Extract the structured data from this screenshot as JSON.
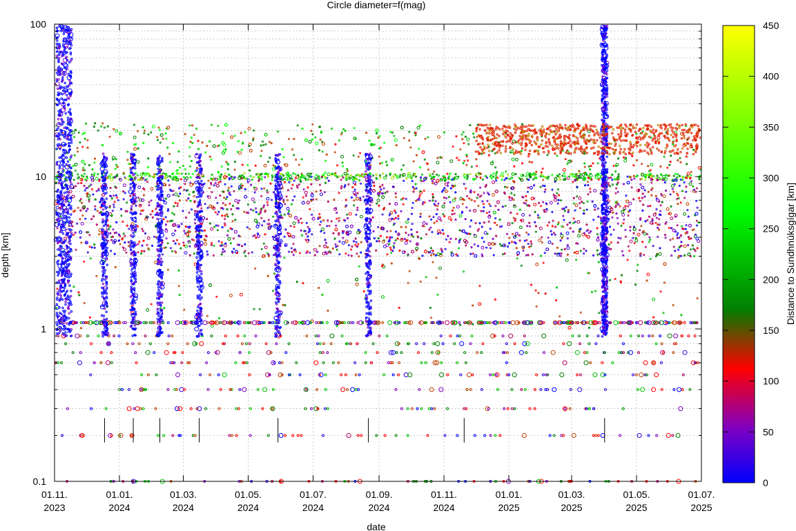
{
  "chart_data": {
    "type": "scatter",
    "title": "Circle diameter=f(mag)",
    "xlabel": "date",
    "ylabel": "depth [km]",
    "colorbar_label": "Distance to Sundhnúksgígar [km]",
    "y_scale": "log",
    "ylim": [
      0.1,
      100
    ],
    "y_ticks": [
      {
        "value": 0.1,
        "label": "0.1"
      },
      {
        "value": 1,
        "label": "1"
      },
      {
        "value": 10,
        "label": "10"
      },
      {
        "value": 100,
        "label": "100"
      }
    ],
    "xlim": [
      "2023-11-01",
      "2025-07-01"
    ],
    "x_ticks": [
      {
        "date": "2023-11-01",
        "label1": "01.11.",
        "label2": "2023"
      },
      {
        "date": "2024-01-01",
        "label1": "01.01.",
        "label2": "2024"
      },
      {
        "date": "2024-03-01",
        "label1": "01.03.",
        "label2": "2024"
      },
      {
        "date": "2024-05-01",
        "label1": "01.05.",
        "label2": "2024"
      },
      {
        "date": "2024-07-01",
        "label1": "01.07.",
        "label2": "2024"
      },
      {
        "date": "2024-09-01",
        "label1": "01.09.",
        "label2": "2024"
      },
      {
        "date": "2024-11-01",
        "label1": "01.11.",
        "label2": "2024"
      },
      {
        "date": "2025-01-01",
        "label1": "01.01.",
        "label2": "2025"
      },
      {
        "date": "2025-03-01",
        "label1": "01.03.",
        "label2": "2025"
      },
      {
        "date": "2025-05-01",
        "label1": "01.05.",
        "label2": "2025"
      },
      {
        "date": "2025-07-01",
        "label1": "01.07.",
        "label2": "2025"
      }
    ],
    "colorbar": {
      "min": 0,
      "max": 450,
      "ticks": [
        0,
        50,
        100,
        150,
        200,
        250,
        300,
        350,
        400,
        450
      ],
      "colors": [
        "#0000ff",
        "#8000c0",
        "#ff0000",
        "#008000",
        "#00ff00",
        "#ffff00"
      ]
    },
    "grid": true,
    "event_markers": [
      "2023-12-18",
      "2024-01-14",
      "2024-02-08",
      "2024-03-16",
      "2024-05-29",
      "2024-08-22",
      "2024-11-20",
      "2025-04-01"
    ],
    "event_marker_depth_range": [
      0.18,
      0.26
    ],
    "swarm_dates": [
      "2023-11-10",
      "2023-12-18",
      "2024-01-14",
      "2024-02-08",
      "2024-03-16",
      "2024-05-29",
      "2024-08-22",
      "2025-04-01"
    ]
  }
}
